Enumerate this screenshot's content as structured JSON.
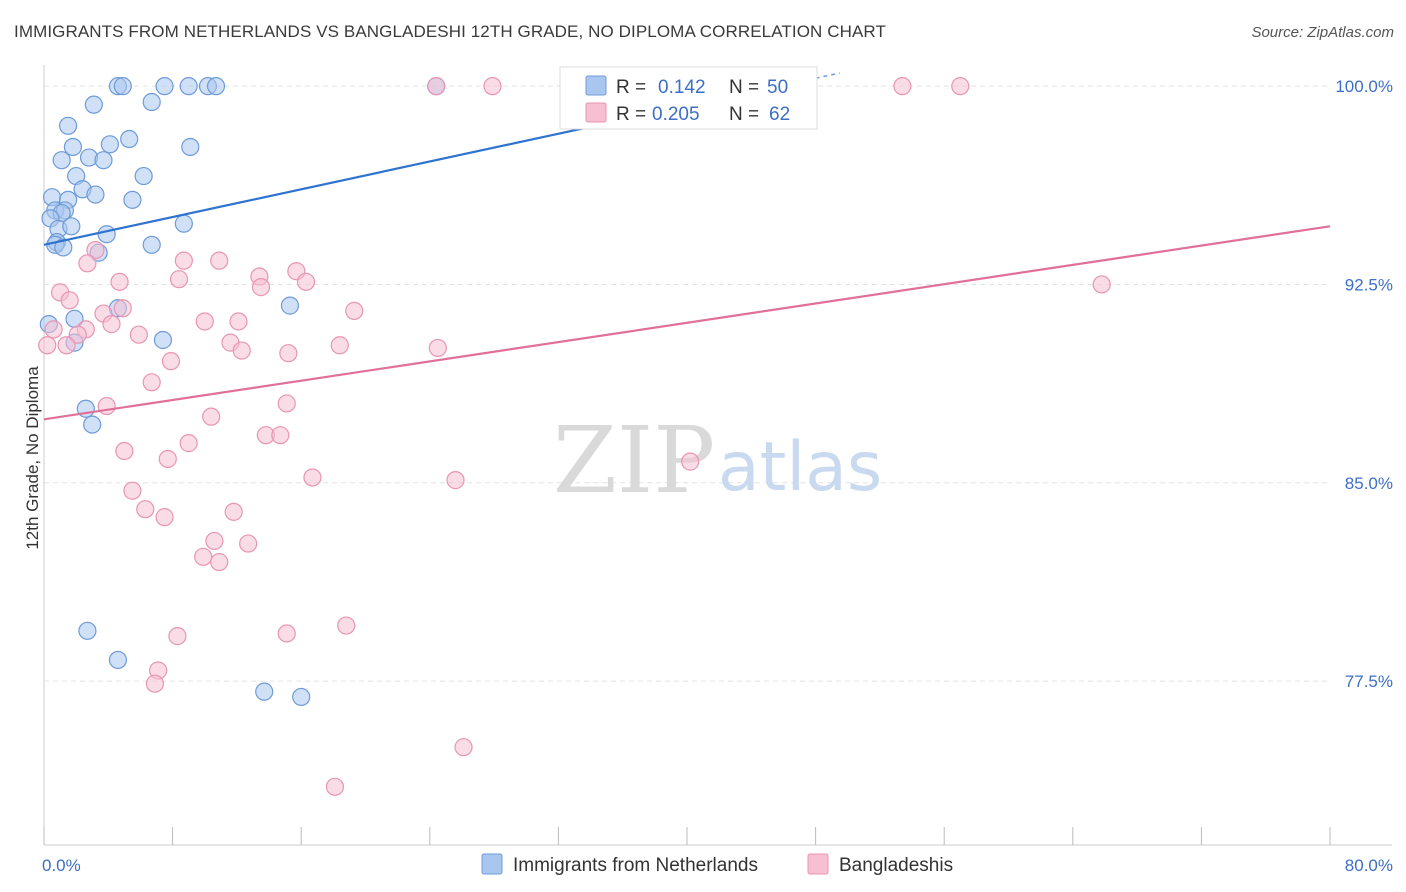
{
  "title": "IMMIGRANTS FROM NETHERLANDS VS BANGLADESHI 12TH GRADE, NO DIPLOMA CORRELATION CHART",
  "source": "Source: ZipAtlas.com",
  "watermark": {
    "zip": "ZIP",
    "atlas": "atlas"
  },
  "colors": {
    "blue_fill": "#a9c7ee",
    "blue_stroke": "#6e9bd8",
    "blue_line": "#2f73d1",
    "pink_fill": "#f6c0d2",
    "pink_stroke": "#e895b3",
    "pink_line": "#e0709a",
    "grid": "#e3e3e3",
    "tick_label": "#3d6fc4"
  },
  "legend": {
    "rows": [
      {
        "r_label": "R =",
        "r_value": "0.142",
        "n_label": "N =",
        "n_value": "50"
      },
      {
        "r_label": "R =",
        "r_value": "0.205",
        "n_label": "N =",
        "n_value": "62"
      }
    ]
  },
  "chart_data": {
    "type": "scatter",
    "title": "IMMIGRANTS FROM NETHERLANDS VS BANGLADESHI 12TH GRADE, NO DIPLOMA CORRELATION CHART",
    "xlabel": "",
    "ylabel": "12th Grade, No Diploma",
    "xlim": [
      0,
      80
    ],
    "ylim": [
      71.3,
      100.8
    ],
    "x_tick_labels": [
      {
        "value": 0,
        "label": "0.0%"
      },
      {
        "value": 80,
        "label": "80.0%"
      }
    ],
    "y_tick_labels": [
      {
        "value": 100,
        "label": "100.0%"
      },
      {
        "value": 92.5,
        "label": "92.5%"
      },
      {
        "value": 85,
        "label": "85.0%"
      },
      {
        "value": 77.5,
        "label": "77.5%"
      }
    ],
    "grid": true,
    "legend_position": "top-center",
    "series": [
      {
        "name": "Immigrants from Netherlands",
        "r": 0.142,
        "n": 50,
        "trend": {
          "x0": 0,
          "y0": 94.0,
          "x1": 48,
          "y1": 100.3
        },
        "points": [
          [
            4.6,
            100
          ],
          [
            4.9,
            100
          ],
          [
            7.5,
            100
          ],
          [
            9.0,
            100
          ],
          [
            10.2,
            100
          ],
          [
            10.7,
            100
          ],
          [
            24.4,
            100
          ],
          [
            33.1,
            100
          ],
          [
            3.1,
            99.3
          ],
          [
            6.7,
            99.4
          ],
          [
            1.5,
            98.5
          ],
          [
            5.3,
            98.0
          ],
          [
            1.8,
            97.7
          ],
          [
            4.1,
            97.8
          ],
          [
            9.1,
            97.7
          ],
          [
            1.1,
            97.2
          ],
          [
            2.8,
            97.3
          ],
          [
            3.7,
            97.2
          ],
          [
            6.2,
            96.6
          ],
          [
            2.0,
            96.6
          ],
          [
            2.4,
            96.1
          ],
          [
            0.5,
            95.8
          ],
          [
            1.5,
            95.7
          ],
          [
            3.2,
            95.9
          ],
          [
            5.5,
            95.7
          ],
          [
            0.7,
            95.3
          ],
          [
            1.3,
            95.3
          ],
          [
            1.1,
            95.2
          ],
          [
            0.4,
            95.0
          ],
          [
            0.9,
            94.6
          ],
          [
            1.7,
            94.7
          ],
          [
            8.7,
            94.8
          ],
          [
            3.9,
            94.4
          ],
          [
            0.8,
            94.1
          ],
          [
            0.7,
            94.0
          ],
          [
            1.2,
            93.9
          ],
          [
            6.7,
            94.0
          ],
          [
            3.4,
            93.7
          ],
          [
            4.6,
            91.6
          ],
          [
            15.3,
            91.7
          ],
          [
            1.9,
            91.2
          ],
          [
            0.3,
            91.0
          ],
          [
            1.9,
            90.3
          ],
          [
            7.4,
            90.4
          ],
          [
            2.6,
            87.8
          ],
          [
            3.0,
            87.2
          ],
          [
            2.7,
            79.4
          ],
          [
            4.6,
            78.3
          ],
          [
            13.7,
            77.1
          ],
          [
            16.0,
            76.9
          ]
        ]
      },
      {
        "name": "Bangladeshis",
        "r": 0.205,
        "n": 62,
        "trend": {
          "x0": 0,
          "y0": 87.4,
          "x1": 80,
          "y1": 94.7
        },
        "points": [
          [
            24.4,
            100
          ],
          [
            27.9,
            100
          ],
          [
            53.4,
            100
          ],
          [
            57.0,
            100
          ],
          [
            3.2,
            93.8
          ],
          [
            8.7,
            93.4
          ],
          [
            10.9,
            93.4
          ],
          [
            2.7,
            93.3
          ],
          [
            15.7,
            93.0
          ],
          [
            13.4,
            92.8
          ],
          [
            16.3,
            92.6
          ],
          [
            8.4,
            92.7
          ],
          [
            4.7,
            92.6
          ],
          [
            13.5,
            92.4
          ],
          [
            1.0,
            92.2
          ],
          [
            1.6,
            91.9
          ],
          [
            4.9,
            91.6
          ],
          [
            19.3,
            91.5
          ],
          [
            3.7,
            91.4
          ],
          [
            10.0,
            91.1
          ],
          [
            12.1,
            91.1
          ],
          [
            4.2,
            91.0
          ],
          [
            0.6,
            90.8
          ],
          [
            2.6,
            90.8
          ],
          [
            2.1,
            90.6
          ],
          [
            5.9,
            90.6
          ],
          [
            1.4,
            90.2
          ],
          [
            11.6,
            90.3
          ],
          [
            18.4,
            90.2
          ],
          [
            12.3,
            90.0
          ],
          [
            24.5,
            90.1
          ],
          [
            15.2,
            89.9
          ],
          [
            7.9,
            89.6
          ],
          [
            6.7,
            88.8
          ],
          [
            15.1,
            88.0
          ],
          [
            3.9,
            87.9
          ],
          [
            10.4,
            87.5
          ],
          [
            13.8,
            86.8
          ],
          [
            14.7,
            86.8
          ],
          [
            9.0,
            86.5
          ],
          [
            5.0,
            86.2
          ],
          [
            7.7,
            85.9
          ],
          [
            40.2,
            85.8
          ],
          [
            16.7,
            85.2
          ],
          [
            25.6,
            85.1
          ],
          [
            5.5,
            84.7
          ],
          [
            6.3,
            84.0
          ],
          [
            11.8,
            83.9
          ],
          [
            7.5,
            83.7
          ],
          [
            10.6,
            82.8
          ],
          [
            12.7,
            82.7
          ],
          [
            9.9,
            82.2
          ],
          [
            65.8,
            92.5
          ],
          [
            0.2,
            90.2
          ],
          [
            10.9,
            82.0
          ],
          [
            18.8,
            79.6
          ],
          [
            15.1,
            79.3
          ],
          [
            8.3,
            79.2
          ],
          [
            7.1,
            77.9
          ],
          [
            6.9,
            77.4
          ],
          [
            26.1,
            75.0
          ],
          [
            18.1,
            73.5
          ]
        ]
      }
    ]
  }
}
